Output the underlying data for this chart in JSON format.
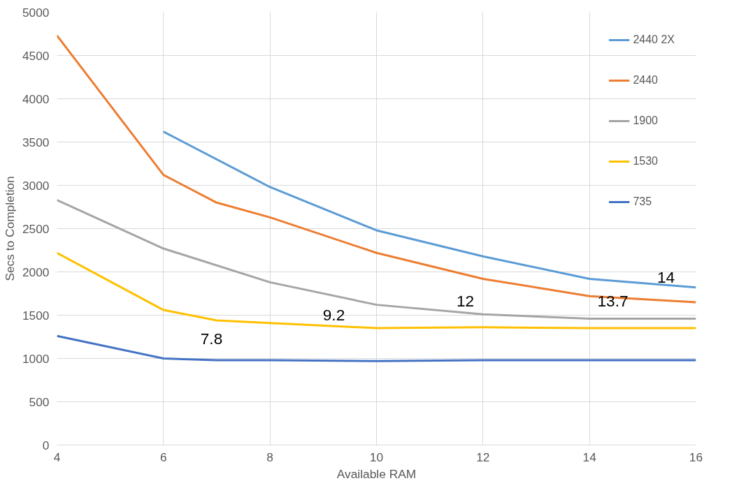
{
  "chart_data": {
    "type": "line",
    "xlabel": "Available RAM",
    "ylabel": "Secs to Completion",
    "xlim": [
      4,
      16
    ],
    "xticks": [
      4,
      6,
      8,
      10,
      12,
      14,
      16
    ],
    "ylim": [
      0,
      5000
    ],
    "yticks": [
      0,
      500,
      1000,
      1500,
      2000,
      2500,
      3000,
      3500,
      4000,
      4500,
      5000
    ],
    "grid": true,
    "legend": "top right",
    "marker": "none",
    "line_style": "solid",
    "series": [
      {
        "name": "2440 2X",
        "color": "#5b9bd5",
        "x": [
          6,
          8,
          10,
          12,
          14,
          16
        ],
        "values": [
          3620,
          2980,
          2480,
          2180,
          1920,
          1820
        ]
      },
      {
        "name": "2440",
        "color": "#ed7d31",
        "x": [
          4,
          6,
          7,
          8,
          10,
          12,
          14,
          16
        ],
        "values": [
          4730,
          3120,
          2800,
          2630,
          2220,
          1920,
          1720,
          1650
        ]
      },
      {
        "name": "1900",
        "color": "#a5a5a5",
        "x": [
          4,
          6,
          8,
          10,
          12,
          14,
          16
        ],
        "values": [
          2830,
          2270,
          1880,
          1620,
          1510,
          1460,
          1460
        ]
      },
      {
        "name": "1530",
        "color": "#ffc000",
        "x": [
          4,
          6,
          7,
          8,
          10,
          12,
          14,
          16
        ],
        "values": [
          2220,
          1560,
          1440,
          1410,
          1350,
          1360,
          1350,
          1350
        ]
      },
      {
        "name": "735",
        "color": "#4472c4",
        "x": [
          4,
          6,
          7,
          8,
          10,
          12,
          14,
          16
        ],
        "values": [
          1260,
          1000,
          980,
          980,
          970,
          980,
          980,
          980
        ]
      }
    ],
    "annotations": [
      "7.8",
      "9.2",
      "12",
      "13.7",
      "14"
    ]
  }
}
